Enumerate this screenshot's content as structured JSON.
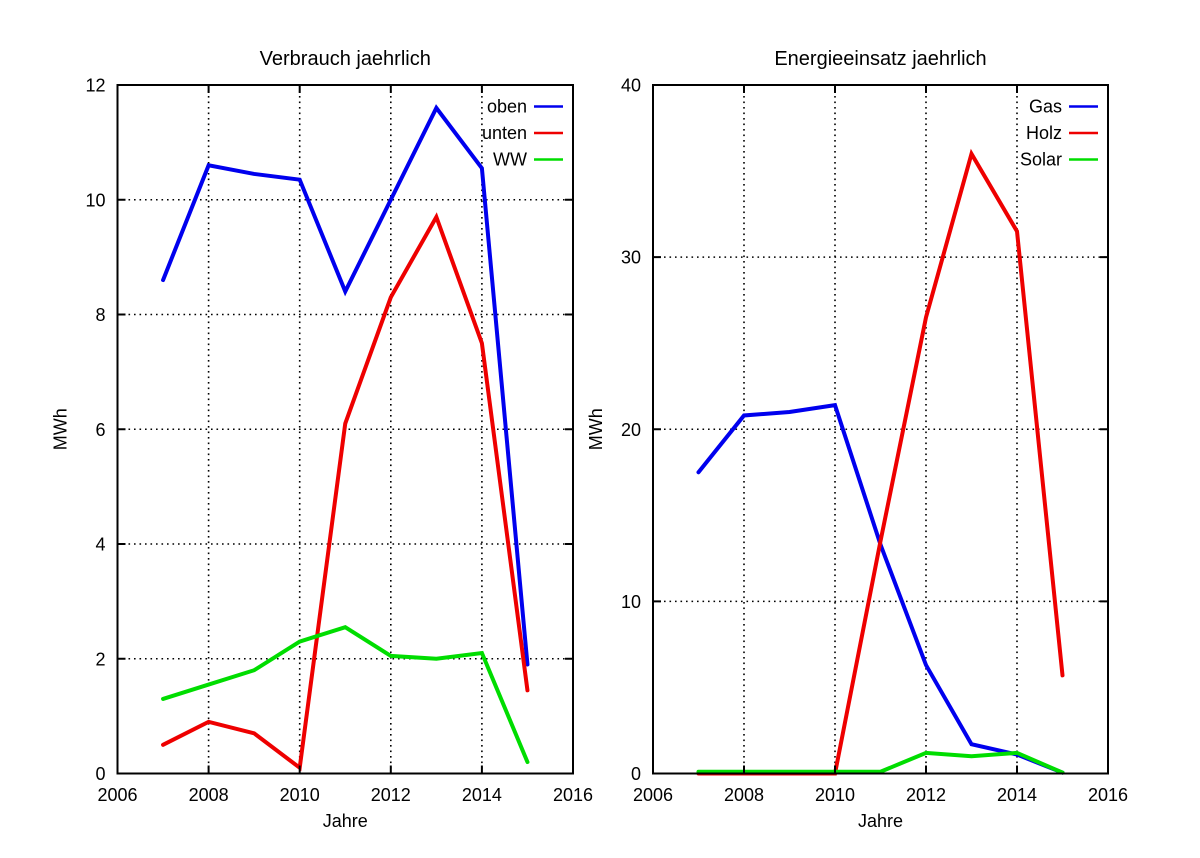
{
  "figure": {
    "background": "#ffffff",
    "text_color": "#000000",
    "grid_color": "#000000",
    "border_color": "#000000"
  },
  "chart_data": [
    {
      "type": "line",
      "title": "Verbrauch jaehrlich",
      "xlabel": "Jahre",
      "ylabel": "MWh",
      "x": [
        2007,
        2008,
        2009,
        2010,
        2011,
        2012,
        2013,
        2014,
        2015
      ],
      "xlim": [
        2006,
        2016
      ],
      "ylim": [
        0,
        12
      ],
      "xticks": [
        2006,
        2008,
        2010,
        2012,
        2014,
        2016
      ],
      "yticks": [
        0,
        2,
        4,
        6,
        8,
        10,
        12
      ],
      "grid": true,
      "legend_position": "top-right-inside",
      "series": [
        {
          "name": "oben",
          "color": "#0000ee",
          "values": [
            8.6,
            10.6,
            10.45,
            10.35,
            8.4,
            10.0,
            11.6,
            10.55,
            1.9
          ]
        },
        {
          "name": "unten",
          "color": "#ee0000",
          "values": [
            0.5,
            0.9,
            0.7,
            0.1,
            6.1,
            8.3,
            9.7,
            7.5,
            1.45
          ]
        },
        {
          "name": "WW",
          "color": "#00dd00",
          "values": [
            1.3,
            1.55,
            1.8,
            2.3,
            2.55,
            2.05,
            2.0,
            2.1,
            0.2
          ]
        }
      ]
    },
    {
      "type": "line",
      "title": "Energieeinsatz jaehrlich",
      "xlabel": "Jahre",
      "ylabel": "MWh",
      "x": [
        2007,
        2008,
        2009,
        2010,
        2011,
        2012,
        2013,
        2014,
        2015
      ],
      "xlim": [
        2006,
        2016
      ],
      "ylim": [
        0,
        40
      ],
      "xticks": [
        2006,
        2008,
        2010,
        2012,
        2014,
        2016
      ],
      "yticks": [
        0,
        10,
        20,
        30,
        40
      ],
      "grid": true,
      "legend_position": "top-right-inside",
      "series": [
        {
          "name": "Gas",
          "color": "#0000ee",
          "values": [
            17.5,
            20.8,
            21.0,
            21.4,
            13.3,
            6.3,
            1.7,
            1.1,
            0.05
          ]
        },
        {
          "name": "Holz",
          "color": "#ee0000",
          "values": [
            0.0,
            0.0,
            0.0,
            0.0,
            13.5,
            26.5,
            36.0,
            31.5,
            5.7
          ]
        },
        {
          "name": "Solar",
          "color": "#00dd00",
          "values": [
            0.1,
            0.1,
            0.1,
            0.1,
            0.1,
            1.2,
            1.0,
            1.2,
            0.05
          ]
        }
      ]
    }
  ]
}
